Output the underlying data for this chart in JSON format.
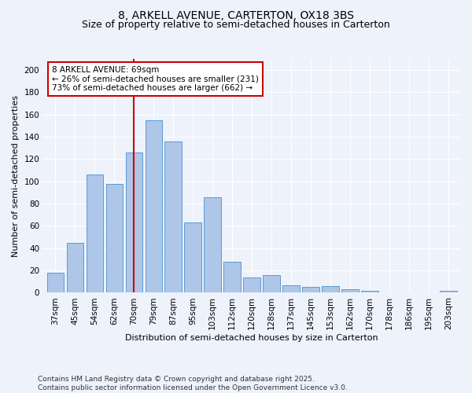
{
  "title": "8, ARKELL AVENUE, CARTERTON, OX18 3BS",
  "subtitle": "Size of property relative to semi-detached houses in Carterton",
  "xlabel": "Distribution of semi-detached houses by size in Carterton",
  "ylabel": "Number of semi-detached properties",
  "categories": [
    "37sqm",
    "45sqm",
    "54sqm",
    "62sqm",
    "70sqm",
    "79sqm",
    "87sqm",
    "95sqm",
    "103sqm",
    "112sqm",
    "120sqm",
    "128sqm",
    "137sqm",
    "145sqm",
    "153sqm",
    "162sqm",
    "170sqm",
    "178sqm",
    "186sqm",
    "195sqm",
    "203sqm"
  ],
  "values": [
    18,
    45,
    106,
    98,
    126,
    155,
    136,
    63,
    86,
    28,
    14,
    16,
    7,
    5,
    6,
    3,
    2,
    0,
    0,
    0,
    2
  ],
  "bar_color": "#aec6e8",
  "bar_edge_color": "#5b9bd5",
  "vline_x_index": 4,
  "vline_color": "#cc0000",
  "annotation_line1": "8 ARKELL AVENUE: 69sqm",
  "annotation_line2": "← 26% of semi-detached houses are smaller (231)",
  "annotation_line3": "73% of semi-detached houses are larger (662) →",
  "annotation_box_color": "#ffffff",
  "annotation_box_edge_color": "#cc0000",
  "ylim": [
    0,
    210
  ],
  "yticks": [
    0,
    20,
    40,
    60,
    80,
    100,
    120,
    140,
    160,
    180,
    200
  ],
  "background_color": "#eef2fb",
  "footer_line1": "Contains HM Land Registry data © Crown copyright and database right 2025.",
  "footer_line2": "Contains public sector information licensed under the Open Government Licence v3.0.",
  "title_fontsize": 10,
  "subtitle_fontsize": 9,
  "axis_label_fontsize": 8,
  "tick_fontsize": 7.5,
  "annotation_fontsize": 7.5,
  "footer_fontsize": 6.5
}
